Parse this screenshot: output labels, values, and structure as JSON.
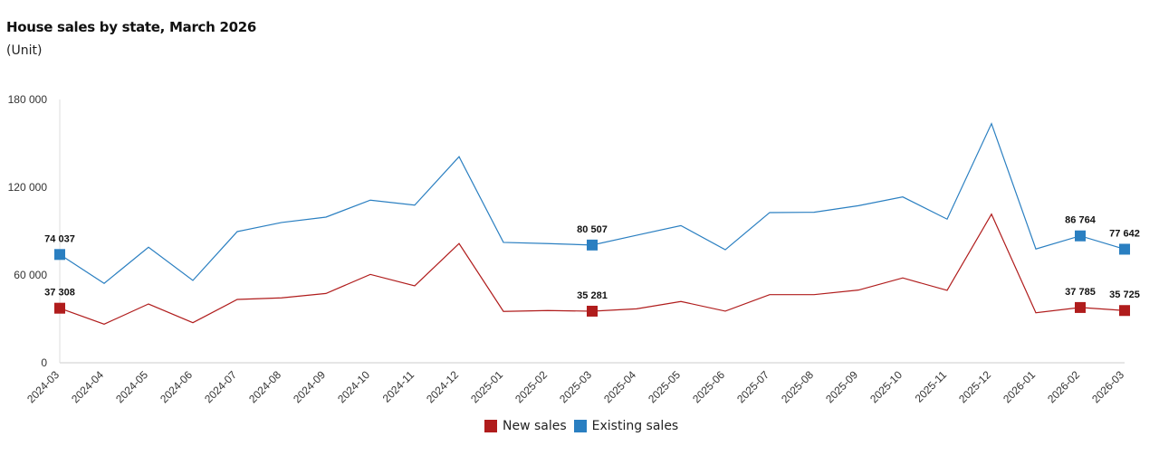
{
  "header": {
    "title": "House sales by state, March 2026",
    "subtitle": "(Unit)"
  },
  "legend": {
    "items": [
      {
        "label": "New sales",
        "color": "#b01c1c"
      },
      {
        "label": "Existing sales",
        "color": "#2a7fc1"
      }
    ]
  },
  "chart_data": {
    "type": "line",
    "title": "House sales by state, March 2026",
    "subtitle": "(Unit)",
    "xlabel": "",
    "ylabel": "(Unit)",
    "ylim": [
      0,
      180000
    ],
    "yticks": [
      0,
      60000,
      120000,
      180000
    ],
    "ytick_labels": [
      "0",
      "60 000",
      "120 000",
      "180 000"
    ],
    "grid": false,
    "legend_position": "bottom",
    "categories": [
      "2024-03",
      "2024-04",
      "2024-05",
      "2024-06",
      "2024-07",
      "2024-08",
      "2024-09",
      "2024-10",
      "2024-11",
      "2024-12",
      "2025-01",
      "2025-02",
      "2025-03",
      "2025-04",
      "2025-05",
      "2025-06",
      "2025-07",
      "2025-08",
      "2025-09",
      "2025-10",
      "2025-11",
      "2025-12",
      "2026-01",
      "2026-02",
      "2026-03"
    ],
    "series": [
      {
        "name": "New sales",
        "color": "#b01c1c",
        "values": [
          37308,
          26400,
          40200,
          27400,
          43300,
          44400,
          47400,
          60400,
          52600,
          81500,
          35100,
          35700,
          35281,
          36900,
          41900,
          35300,
          46600,
          46600,
          49700,
          58000,
          49500,
          101600,
          34200,
          37785,
          35725
        ],
        "labeled_points": [
          {
            "category": "2024-03",
            "label": "37 308"
          },
          {
            "category": "2025-03",
            "label": "35 281"
          },
          {
            "category": "2026-02",
            "label": "37 785"
          },
          {
            "category": "2026-03",
            "label": "35 725"
          }
        ]
      },
      {
        "name": "Existing sales",
        "color": "#2a7fc1",
        "values": [
          74037,
          54300,
          79000,
          56300,
          89700,
          95900,
          99600,
          111200,
          107800,
          140900,
          82300,
          81500,
          80507,
          87200,
          93800,
          77300,
          102700,
          102900,
          107400,
          113400,
          98200,
          163500,
          77800,
          86764,
          77642
        ],
        "labeled_points": [
          {
            "category": "2024-03",
            "label": "74 037"
          },
          {
            "category": "2025-03",
            "label": "80 507"
          },
          {
            "category": "2026-02",
            "label": "86 764"
          },
          {
            "category": "2026-03",
            "label": "77 642"
          }
        ]
      }
    ]
  }
}
